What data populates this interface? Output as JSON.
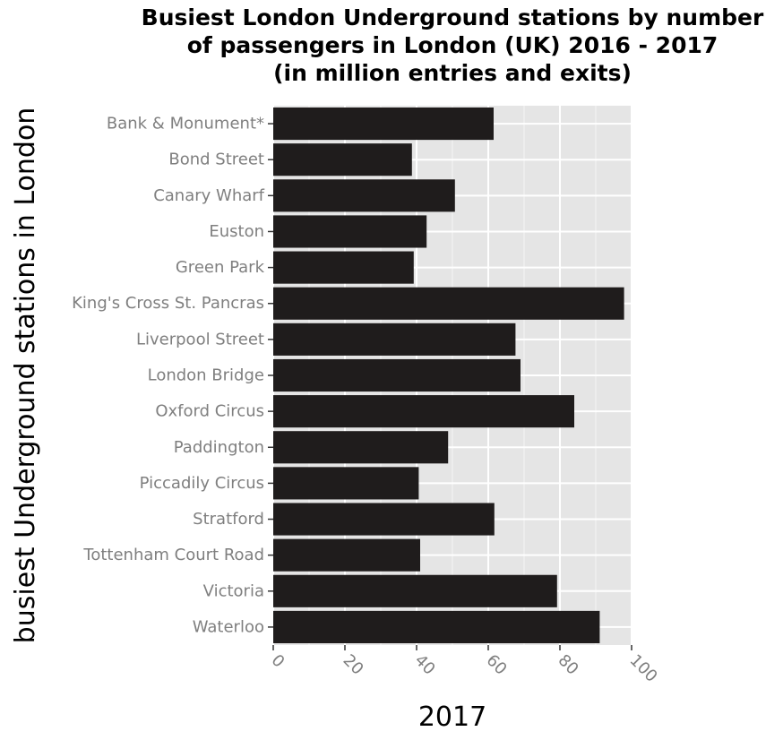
{
  "chart_data": {
    "type": "bar",
    "orientation": "horizontal",
    "title": [
      "Busiest London Underground stations by number",
      "of passengers in London (UK) 2016 - 2017",
      "(in million entries and exits)"
    ],
    "xlabel": "2017",
    "ylabel": "busiest Underground stations in London",
    "xlim": [
      0,
      100
    ],
    "x_ticks": [
      0,
      20,
      40,
      60,
      80,
      100
    ],
    "grid": true,
    "categories": [
      "Bank & Monument*",
      "Bond Street",
      "Canary Wharf",
      "Euston",
      "Green Park",
      "King's Cross St. Pancras",
      "Liverpool Street",
      "London Bridge",
      "Oxford Circus",
      "Paddington",
      "Piccadily Circus",
      "Stratford",
      "Tottenham Court Road",
      "Victoria",
      "Waterloo"
    ],
    "values": [
      61.5,
      38.7,
      50.7,
      42.8,
      39.2,
      97.9,
      67.6,
      69.0,
      84.0,
      48.8,
      40.6,
      61.7,
      41.0,
      79.2,
      91.1
    ],
    "colors": {
      "bar": "#1f1c1c",
      "panel": "#e5e5e5",
      "grid": "#ffffff",
      "tick_text": "#7f7f7f"
    }
  }
}
